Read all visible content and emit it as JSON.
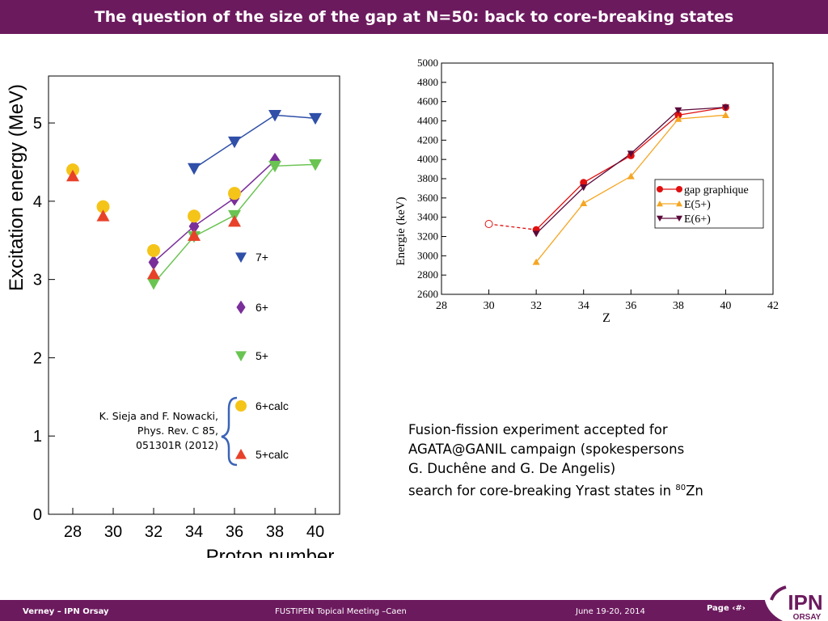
{
  "slide": {
    "title": "The question of the size of the gap at N=50: back to core-breaking states",
    "reference": [
      "K. Sieja and F. Nowacki,",
      "Phys. Rev. C 85,",
      "051301R (2012)"
    ],
    "note": {
      "line1": "Fusion-fission experiment accepted for",
      "line2": "AGATA@GANIL campaign (spokespersons",
      "line3": "G. Duchêne and G. De Angelis)",
      "line4_pre": "search for core-breaking Yrast states in ",
      "line4_sup": "80",
      "line4_post": "Zn"
    }
  },
  "footer": {
    "author": "Verney – IPN Orsay",
    "meeting": "FUSTIPEN Topical Meeting –Caen",
    "date": "June 19-20, 2014",
    "page": "Page ‹#›",
    "logo_top": "IPN",
    "logo_bottom": "ORSAY"
  },
  "colors": {
    "accent": "#6c1a5e"
  },
  "chart_data": [
    {
      "type": "line",
      "title": "",
      "xlabel": "Proton number",
      "ylabel": "Excitation energy (MeV)",
      "xlim": [
        26.8,
        41.2
      ],
      "ylim": [
        0,
        5.6
      ],
      "xticks": [
        28,
        30,
        32,
        34,
        36,
        38,
        40
      ],
      "yticks": [
        0,
        1,
        2,
        3,
        4,
        5
      ],
      "legend_position": "right",
      "series": [
        {
          "name": "7+",
          "color": "#2f4fa8",
          "marker": "triangle-down",
          "line": true,
          "x": [
            34,
            36,
            38,
            40
          ],
          "y": [
            4.42,
            4.76,
            5.1,
            5.06
          ]
        },
        {
          "name": "6+",
          "color": "#7a2e9a",
          "marker": "diamond",
          "line": true,
          "x": [
            32,
            34,
            36,
            38
          ],
          "y": [
            3.22,
            3.68,
            4.04,
            4.52
          ]
        },
        {
          "name": "5+",
          "color": "#6ac452",
          "marker": "triangle-down",
          "line": true,
          "x": [
            32,
            34,
            36,
            38,
            40
          ],
          "y": [
            2.95,
            3.55,
            3.82,
            4.45,
            4.47
          ]
        },
        {
          "name": "6+calc",
          "color": "#f5c419",
          "marker": "circle",
          "line": false,
          "x": [
            28,
            29.5,
            32,
            34,
            36
          ],
          "y": [
            4.4,
            3.93,
            3.37,
            3.81,
            4.1
          ]
        },
        {
          "name": "5+calc",
          "color": "#e8412a",
          "marker": "triangle-up",
          "line": false,
          "x": [
            28,
            29.5,
            32,
            34,
            36
          ],
          "y": [
            4.32,
            3.81,
            3.07,
            3.56,
            3.74
          ]
        }
      ]
    },
    {
      "type": "line",
      "title": "",
      "xlabel": "Z",
      "ylabel": "Energie (keV)",
      "xlim": [
        28,
        42
      ],
      "ylim": [
        2600,
        5000
      ],
      "xticks": [
        28,
        30,
        32,
        34,
        36,
        38,
        40,
        42
      ],
      "yticks": [
        2600,
        2800,
        3000,
        3200,
        3400,
        3600,
        3800,
        4000,
        4200,
        4400,
        4600,
        4800,
        5000
      ],
      "legend_position": "right",
      "series": [
        {
          "name": "gap graphique",
          "color": "#e01010",
          "marker": "circle",
          "x": [
            32,
            34,
            36,
            38,
            40
          ],
          "y": [
            3270,
            3760,
            4040,
            4460,
            4540
          ]
        },
        {
          "name": "E(5+)",
          "color": "#f5a623",
          "marker": "triangle-up",
          "x": [
            32,
            34,
            36,
            38,
            40
          ],
          "y": [
            2935,
            3545,
            3825,
            4420,
            4460
          ]
        },
        {
          "name": "E(6+)",
          "color": "#5a0a3a",
          "marker": "triangle-down",
          "x": [
            32,
            34,
            36,
            38,
            40
          ],
          "y": [
            3230,
            3710,
            4060,
            4510,
            4540
          ]
        },
        {
          "name": "",
          "color": "#e01010",
          "marker": "open-circle",
          "dashed": true,
          "x": [
            30,
            32
          ],
          "y": [
            3330,
            3270
          ]
        }
      ]
    }
  ]
}
